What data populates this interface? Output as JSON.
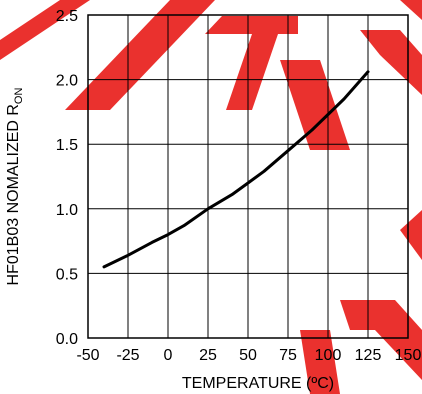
{
  "chart_data": {
    "type": "line",
    "title": "",
    "xlabel": "TEMPERATURE (ºC)",
    "ylabel_main": "HF01B03 NOMALIZED R",
    "ylabel_subscript": "ON",
    "xlim": [
      -50,
      150
    ],
    "ylim": [
      0.0,
      2.5
    ],
    "x_ticks": [
      -50,
      -25,
      0,
      25,
      50,
      75,
      100,
      125,
      150
    ],
    "y_ticks": [
      0.0,
      0.5,
      1.0,
      1.5,
      2.0,
      2.5
    ],
    "x_tick_labels": [
      "-50",
      "-25",
      "0",
      "25",
      "50",
      "75",
      "100",
      "125",
      "150"
    ],
    "y_tick_labels": [
      "0.0",
      "0.5",
      "1.0",
      "1.5",
      "2.0",
      "2.5"
    ],
    "grid": true,
    "series": [
      {
        "x": [
          -40,
          -25,
          -10,
          0,
          10,
          25,
          40,
          50,
          60,
          75,
          90,
          100,
          110,
          125
        ],
        "y": [
          0.55,
          0.64,
          0.74,
          0.8,
          0.87,
          1.0,
          1.11,
          1.2,
          1.29,
          1.45,
          1.61,
          1.73,
          1.85,
          2.06
        ]
      }
    ]
  },
  "colors": {
    "line": "#000000",
    "grid": "#000000",
    "watermark": "#e8201c"
  },
  "watermark": {
    "type": "red diagonal stamp",
    "text": ""
  }
}
